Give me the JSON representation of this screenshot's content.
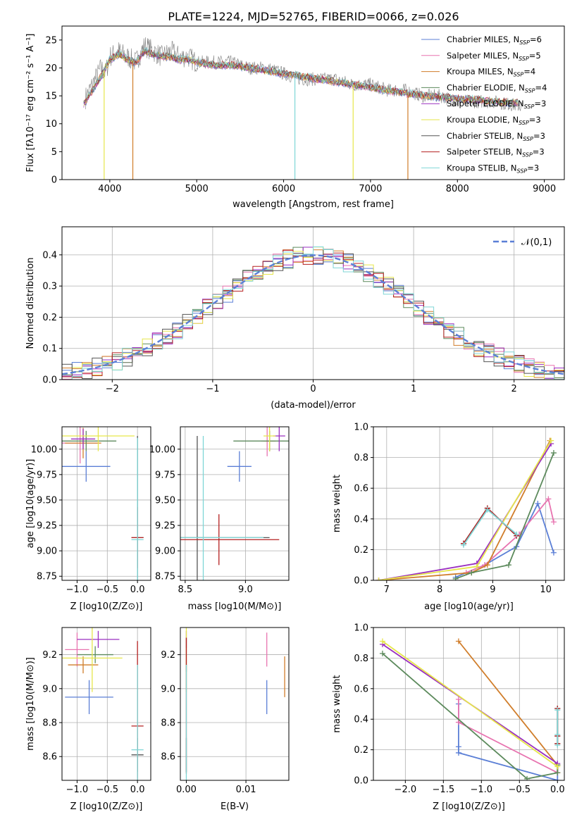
{
  "title": "PLATE=1224, MJD=52765, FIBERID=0066, z=0.026",
  "colors": [
    "#5b7fd6",
    "#e874b0",
    "#d07d2a",
    "#5c8a5c",
    "#9a2fc0",
    "#e6e64a",
    "#555555",
    "#b52020",
    "#7fd6d6"
  ],
  "chart_data": [
    {
      "id": "spectrum",
      "type": "line",
      "xlabel": "wavelength [Angstrom, rest frame]",
      "ylabel": "Flux [f_λ 10^-17 erg cm^-2 s^-1 A^-1]",
      "xlim": [
        3450,
        9230
      ],
      "ylim": [
        0,
        27.5
      ],
      "xticks": [
        4000,
        5000,
        6000,
        7000,
        8000,
        9000
      ],
      "yticks": [
        0,
        5,
        10,
        15,
        20,
        25
      ],
      "grid": false,
      "legend": "top-right",
      "series": [
        {
          "name": "Chabrier MILES, N_SSP=6",
          "color": "#5b7fd6"
        },
        {
          "name": "Salpeter MILES, N_SSP=5",
          "color": "#e874b0"
        },
        {
          "name": "Kroupa MILES, N_SSP=4",
          "color": "#d07d2a"
        },
        {
          "name": "Chabrier ELODIE, N_SSP=4",
          "color": "#5c8a5c"
        },
        {
          "name": "Salpeter ELODIE, N_SSP=3",
          "color": "#9a2fc0"
        },
        {
          "name": "Kroupa ELODIE, N_SSP=3",
          "color": "#e6e64a"
        },
        {
          "name": "Chabrier STELIB, N_SSP=3",
          "color": "#555555"
        },
        {
          "name": "Salpeter STELIB, N_SSP=3",
          "color": "#b52020"
        },
        {
          "name": "Kroupa STELIB, N_SSP=3",
          "color": "#7fd6d6"
        }
      ],
      "data_series": {
        "name": "data",
        "color": "#808080",
        "x": [
          3700,
          3800,
          3900,
          3950,
          4000,
          4100,
          4200,
          4300,
          4400,
          4500,
          4600,
          4700,
          4800,
          4900,
          5000,
          5200,
          5400,
          5600,
          5800,
          6000,
          6200,
          6400,
          6600,
          6800,
          7000,
          7200,
          7400,
          7600,
          7800,
          8000,
          8200,
          8400,
          8600,
          8800,
          9000
        ],
        "y": [
          14,
          17,
          20,
          19,
          22,
          23,
          22,
          21,
          24,
          23,
          22,
          23,
          22,
          22,
          21,
          21,
          21,
          20,
          20,
          19,
          18,
          18,
          18,
          17,
          17,
          16,
          16,
          15,
          15,
          14,
          14,
          14,
          13.5,
          13,
          13
        ]
      },
      "model_curve": {
        "x": [
          3700,
          3800,
          3900,
          4000,
          4100,
          4200,
          4300,
          4400,
          4500,
          4600,
          4700,
          4800,
          4900,
          5000,
          5200,
          5400,
          5600,
          5800,
          6000,
          6200,
          6400,
          6600,
          6800,
          7000,
          7200,
          7400,
          7600,
          7800,
          8000,
          8200,
          8400,
          8600,
          8700
        ],
        "y": [
          13.5,
          16,
          18.5,
          21.5,
          22.5,
          21.5,
          21,
          23,
          22.5,
          22,
          22,
          21.5,
          21.5,
          21,
          20.5,
          20.5,
          20,
          19.5,
          19,
          18.5,
          18,
          17.5,
          17,
          16.5,
          16,
          15.5,
          15,
          14.8,
          14.5,
          14.3,
          14,
          13.8,
          13.7
        ]
      },
      "dips": [
        {
          "x": 3935,
          "color": "#e6e64a"
        },
        {
          "x": 4265,
          "color": "#d07d2a"
        },
        {
          "x": 6130,
          "color": "#7fd6d6"
        },
        {
          "x": 6800,
          "color": "#e6e64a"
        },
        {
          "x": 7430,
          "color": "#d07d2a"
        }
      ]
    },
    {
      "id": "residuals",
      "type": "line",
      "xlabel": "(data-model)/error",
      "ylabel": "Normed distribution",
      "xlim": [
        -2.5,
        2.5
      ],
      "ylim": [
        0,
        0.49
      ],
      "xticks": [
        -2,
        -1,
        0,
        1,
        2
      ],
      "yticks": [
        0.0,
        0.1,
        0.2,
        0.3,
        0.4
      ],
      "grid": true,
      "legend": "top-right",
      "reference": {
        "name": "𝒩(0,1)",
        "color": "#5b7fd6",
        "mean": 0,
        "sd": 1
      }
    },
    {
      "id": "age_vs_Z",
      "type": "scatter",
      "xlabel": "Z [log10(Z/Z⊙)]",
      "ylabel": "age  [log10(age/yr)]",
      "xlim": [
        -1.25,
        0.22
      ],
      "ylim": [
        8.71,
        10.22
      ],
      "xticks": [
        -1.0,
        -0.5,
        0.0
      ],
      "yticks": [
        8.75,
        9.0,
        9.25,
        9.5,
        9.75,
        10.0
      ],
      "grid": true,
      "points": [
        {
          "x": -0.85,
          "xerr": 0.4,
          "y": 9.83,
          "yerr": 0.15,
          "color": "#5b7fd6"
        },
        {
          "x": -0.95,
          "xerr": 0.3,
          "y": 10.06,
          "yerr": 0.2,
          "color": "#e874b0"
        },
        {
          "x": -0.9,
          "xerr": 0.3,
          "y": 10.06,
          "yerr": 0.15,
          "color": "#d07d2a"
        },
        {
          "x": -0.85,
          "xerr": 0.5,
          "y": 10.08,
          "yerr": 0.1,
          "color": "#5c8a5c"
        },
        {
          "x": -0.9,
          "xerr": 0.2,
          "y": 10.1,
          "yerr": 0.1,
          "color": "#9a2fc0"
        },
        {
          "x": -0.65,
          "xerr": 0.6,
          "y": 10.13,
          "yerr": 0.15,
          "color": "#e6e64a"
        },
        {
          "x": 0.0,
          "xerr": 0.1,
          "y": 9.13,
          "yerr": 1.0,
          "color": "#555555"
        },
        {
          "x": 0.0,
          "xerr": 0.1,
          "y": 9.13,
          "yerr": 0.3,
          "color": "#b52020"
        },
        {
          "x": 0.0,
          "xerr": 0.1,
          "y": 9.11,
          "yerr": 1.0,
          "color": "#7fd6d6"
        }
      ]
    },
    {
      "id": "age_vs_mass",
      "type": "scatter",
      "xlabel": "mass [log10(M/M⊙)]",
      "ylabel": "",
      "xlim": [
        8.46,
        9.36
      ],
      "ylim": [
        8.71,
        10.22
      ],
      "xticks": [
        8.5,
        9.0
      ],
      "yticks": [
        8.75,
        9.0,
        9.25,
        9.5,
        9.75,
        10.0
      ],
      "grid": true,
      "points": [
        {
          "x": 8.95,
          "xerr": 0.1,
          "y": 9.83,
          "yerr": 0.15,
          "color": "#5b7fd6"
        },
        {
          "x": 9.18,
          "xerr": 0.05,
          "y": 10.08,
          "yerr": 0.15,
          "color": "#e874b0"
        },
        {
          "x": 9.2,
          "xerr": 0.05,
          "y": 10.08,
          "yerr": 0.1,
          "color": "#d07d2a"
        },
        {
          "x": 9.2,
          "xerr": 0.3,
          "y": 10.08,
          "yerr": 0.1,
          "color": "#5c8a5c"
        },
        {
          "x": 9.28,
          "xerr": 0.05,
          "y": 10.13,
          "yerr": 0.15,
          "color": "#9a2fc0"
        },
        {
          "x": 9.2,
          "xerr": 0.05,
          "y": 10.13,
          "yerr": 0.15,
          "color": "#e6e64a"
        },
        {
          "x": 8.6,
          "xerr": 0.6,
          "y": 9.13,
          "yerr": 1.0,
          "color": "#555555"
        },
        {
          "x": 8.78,
          "xerr": 0.5,
          "y": 9.11,
          "yerr": 0.25,
          "color": "#b52020"
        },
        {
          "x": 8.65,
          "xerr": 0.5,
          "y": 9.13,
          "yerr": 1.0,
          "color": "#7fd6d6"
        }
      ]
    },
    {
      "id": "weight_vs_age",
      "type": "line",
      "xlabel": "age  [log10(age/yr)]",
      "ylabel": "mass weight",
      "xlim": [
        6.75,
        10.35
      ],
      "ylim": [
        0,
        1.0
      ],
      "xticks": [
        7,
        8,
        9,
        10
      ],
      "yticks": [
        0.0,
        0.2,
        0.4,
        0.6,
        0.8,
        1.0
      ],
      "grid": true,
      "series": [
        {
          "color": "#5b7fd6",
          "x": [
            8.3,
            8.85,
            9.45,
            9.85,
            10.15
          ],
          "y": [
            0.02,
            0.1,
            0.22,
            0.5,
            0.18
          ]
        },
        {
          "color": "#e874b0",
          "x": [
            8.5,
            8.85,
            9.5,
            10.05,
            10.15
          ],
          "y": [
            0.05,
            0.1,
            0.3,
            0.53,
            0.38
          ]
        },
        {
          "color": "#d07d2a",
          "x": [
            6.85,
            8.6,
            8.9,
            10.08
          ],
          "y": [
            0.0,
            0.05,
            0.1,
            0.91
          ]
        },
        {
          "color": "#5c8a5c",
          "x": [
            8.3,
            8.6,
            9.3,
            10.15
          ],
          "y": [
            0.01,
            0.05,
            0.1,
            0.83
          ]
        },
        {
          "color": "#9a2fc0",
          "x": [
            6.85,
            8.7,
            10.1
          ],
          "y": [
            0.0,
            0.11,
            0.89
          ]
        },
        {
          "color": "#e6e64a",
          "x": [
            6.85,
            8.7,
            10.1
          ],
          "y": [
            0.0,
            0.09,
            0.91
          ]
        },
        {
          "color": "#555555",
          "x": [
            8.45,
            8.9,
            9.45
          ],
          "y": [
            0.24,
            0.47,
            0.29
          ]
        },
        {
          "color": "#b52020",
          "x": [
            8.45,
            8.9,
            9.45
          ],
          "y": [
            0.24,
            0.47,
            0.29
          ]
        },
        {
          "color": "#7fd6d6",
          "x": [
            8.45,
            8.9,
            9.45
          ],
          "y": [
            0.23,
            0.46,
            0.3
          ]
        }
      ]
    },
    {
      "id": "mass_vs_Z",
      "type": "scatter",
      "xlabel": "Z [log10(Z/Z⊙)]",
      "ylabel": "mass [log10(M/M⊙)]",
      "xlim": [
        -1.25,
        0.22
      ],
      "ylim": [
        8.46,
        9.36
      ],
      "xticks": [
        -1.0,
        -0.5,
        0.0
      ],
      "yticks": [
        8.6,
        8.8,
        9.0,
        9.2
      ],
      "grid": true,
      "points": [
        {
          "x": -0.8,
          "xerr": 0.4,
          "y": 8.95,
          "yerr": 0.1,
          "color": "#5b7fd6"
        },
        {
          "x": -1.0,
          "xerr": 0.2,
          "y": 9.23,
          "yerr": 0.1,
          "color": "#e874b0"
        },
        {
          "x": -0.9,
          "xerr": 0.25,
          "y": 9.14,
          "yerr": 0.05,
          "color": "#d07d2a"
        },
        {
          "x": -0.7,
          "xerr": 0.3,
          "y": 9.2,
          "yerr": 0.05,
          "color": "#5c8a5c"
        },
        {
          "x": -0.65,
          "xerr": 0.35,
          "y": 9.29,
          "yerr": 0.05,
          "color": "#9a2fc0"
        },
        {
          "x": -0.75,
          "xerr": 0.5,
          "y": 9.18,
          "yerr": 0.2,
          "color": "#e6e64a"
        },
        {
          "x": 0.0,
          "xerr": 0.1,
          "y": 8.61,
          "yerr": 0.1,
          "color": "#555555"
        },
        {
          "x": 0.0,
          "xerr": 0.1,
          "y": 8.78,
          "yerr": 0.5,
          "color": "#b52020"
        },
        {
          "x": 0.0,
          "xerr": 0.1,
          "y": 8.64,
          "yerr": 0.5,
          "color": "#7fd6d6"
        }
      ]
    },
    {
      "id": "mass_vs_EBV",
      "type": "scatter",
      "xlabel": "E(B-V)",
      "ylabel": "",
      "xlim": [
        -0.001,
        0.0172
      ],
      "ylim": [
        8.46,
        9.36
      ],
      "xticks": [
        0.0,
        0.01
      ],
      "yticks": [
        8.6,
        8.8,
        9.0,
        9.2
      ],
      "grid": true,
      "points": [
        {
          "x": 0.0135,
          "y": 8.95,
          "yerr": 0.1,
          "color": "#5b7fd6"
        },
        {
          "x": 0.0135,
          "y": 9.23,
          "yerr": 0.1,
          "color": "#e874b0"
        },
        {
          "x": 0.0165,
          "y": 9.07,
          "yerr": 0.12,
          "color": "#d07d2a"
        },
        {
          "x": 0.0,
          "y": 9.2,
          "yerr": 0.1,
          "color": "#5c8a5c"
        },
        {
          "x": 0.0,
          "y": 9.29,
          "yerr": 0.05,
          "color": "#9a2fc0"
        },
        {
          "x": 0.0,
          "y": 9.18,
          "yerr": 0.2,
          "color": "#e6e64a"
        },
        {
          "x": 0.0,
          "y": 8.61,
          "yerr": 0.1,
          "color": "#555555"
        },
        {
          "x": 0.0,
          "y": 8.9,
          "yerr": 0.4,
          "color": "#b52020"
        },
        {
          "x": 0.0,
          "y": 8.64,
          "yerr": 0.5,
          "color": "#7fd6d6"
        }
      ]
    },
    {
      "id": "weight_vs_Z",
      "type": "line",
      "xlabel": "Z [log10(Z/Z⊙)]",
      "ylabel": "mass weight",
      "xlim": [
        -2.42,
        0.09
      ],
      "ylim": [
        0,
        1.0
      ],
      "xticks": [
        -2.0,
        -1.5,
        -1.0,
        -0.5,
        0.0
      ],
      "yticks": [
        0.0,
        0.2,
        0.4,
        0.6,
        0.8,
        1.0
      ],
      "grid": true,
      "series": [
        {
          "color": "#5b7fd6",
          "x": [
            -1.3,
            -1.3,
            -1.3,
            0.0,
            0.0
          ],
          "y": [
            0.5,
            0.22,
            0.18,
            0.0,
            0.1
          ]
        },
        {
          "color": "#e874b0",
          "x": [
            -1.3,
            -1.3,
            0.0,
            0.0
          ],
          "y": [
            0.53,
            0.38,
            0.05,
            0.1
          ]
        },
        {
          "color": "#d07d2a",
          "x": [
            -1.3,
            0.0,
            0.0
          ],
          "y": [
            0.91,
            0.1,
            0.05
          ]
        },
        {
          "color": "#5c8a5c",
          "x": [
            -2.3,
            -0.4,
            0.0,
            0.0
          ],
          "y": [
            0.83,
            0.01,
            0.05,
            0.1
          ]
        },
        {
          "color": "#9a2fc0",
          "x": [
            -2.3,
            0.0
          ],
          "y": [
            0.89,
            0.11
          ]
        },
        {
          "color": "#e6e64a",
          "x": [
            -2.3,
            0.0
          ],
          "y": [
            0.91,
            0.09
          ]
        },
        {
          "color": "#555555",
          "x": [
            0.0,
            0.0,
            0.0
          ],
          "y": [
            0.47,
            0.29,
            0.24
          ]
        },
        {
          "color": "#b52020",
          "x": [
            0.0,
            0.0,
            0.0
          ],
          "y": [
            0.47,
            0.29,
            0.24
          ]
        },
        {
          "color": "#7fd6d6",
          "x": [
            0.0,
            0.0,
            0.0
          ],
          "y": [
            0.46,
            0.3,
            0.23
          ]
        }
      ]
    }
  ]
}
